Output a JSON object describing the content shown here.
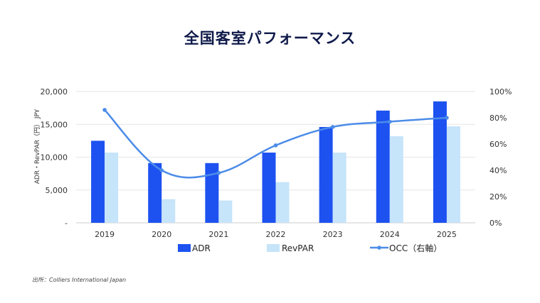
{
  "page": {
    "title": "全国客室パフォーマンス",
    "source": "出所：Colliers International Japan"
  },
  "colors": {
    "adr": "#1d52f0",
    "revpar": "#c6e4fa",
    "occ": "#4c8ce8",
    "grid": "#e6e6e6",
    "axis": "#cccccc"
  },
  "chart_data": {
    "type": "bar",
    "categories": [
      "2019",
      "2020",
      "2021",
      "2022",
      "2023",
      "2024",
      "2025"
    ],
    "ylabel": "ADR・RevPAR（円） JPY",
    "y_left": {
      "ticks": [
        "-",
        "5,000",
        "10,000",
        "15,000",
        "20,000"
      ],
      "range": [
        0,
        20000
      ]
    },
    "y_right": {
      "ticks": [
        "0%",
        "20%",
        "40%",
        "60%",
        "80%",
        "100%"
      ],
      "range": [
        0,
        100
      ]
    },
    "series": [
      {
        "name": "ADR",
        "type": "bar",
        "axis": "left",
        "values": [
          12500,
          9100,
          9100,
          10700,
          14600,
          17100,
          18500
        ]
      },
      {
        "name": "RevPAR",
        "type": "bar",
        "axis": "left",
        "values": [
          10700,
          3600,
          3400,
          6200,
          10700,
          13200,
          14700
        ]
      },
      {
        "name": "OCC（右軸）",
        "type": "line",
        "axis": "right",
        "values": [
          86,
          40,
          38,
          59,
          73,
          77,
          80
        ]
      }
    ],
    "legend": [
      "ADR",
      "RevPAR",
      "OCC（右軸）"
    ],
    "grid": true,
    "legend_position": "bottom"
  }
}
